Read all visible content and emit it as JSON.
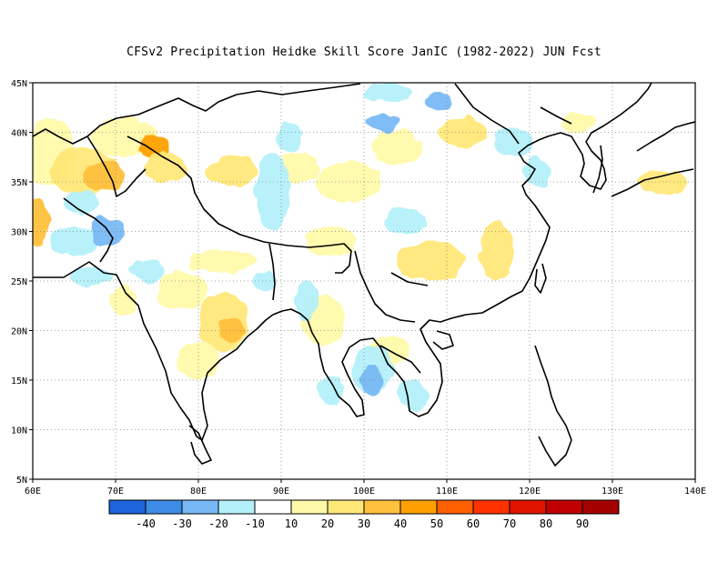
{
  "title": "CFSv2  Precipitation Heidke Skill Score JanIC (1982-2022) JUN Fcst",
  "map": {
    "lon_range": [
      60,
      140
    ],
    "lat_range": [
      5,
      45
    ],
    "lon_ticks": [
      "60E",
      "70E",
      "80E",
      "90E",
      "100E",
      "110E",
      "120E",
      "130E",
      "140E"
    ],
    "lat_ticks": [
      "5N",
      "10N",
      "15N",
      "20N",
      "25N",
      "30N",
      "35N",
      "40N",
      "45N"
    ],
    "grid": true
  },
  "colorbar": {
    "colors": [
      "#1e64dc",
      "#3c8ce6",
      "#78b9f5",
      "#b4f0fa",
      "#ffffff",
      "#fffaaa",
      "#ffe878",
      "#ffc03c",
      "#ffa000",
      "#ff6000",
      "#ff3200",
      "#e11400",
      "#c00000",
      "#a50000"
    ],
    "labels": [
      "-40",
      "-30",
      "-20",
      "-10",
      "10",
      "20",
      "30",
      "40",
      "50",
      "60",
      "70",
      "80",
      "90"
    ]
  },
  "skill_patches": [
    {
      "lon": 62,
      "lat": 38,
      "rx": 3,
      "ry": 3.5,
      "level": "20"
    },
    {
      "lon": 66,
      "lat": 36,
      "rx": 4,
      "ry": 2.5,
      "level": "30"
    },
    {
      "lon": 68.5,
      "lat": 35.5,
      "rx": 2.5,
      "ry": 1.5,
      "level": "40"
    },
    {
      "lon": 60.5,
      "lat": 31,
      "rx": 1.5,
      "ry": 2.5,
      "level": "40"
    },
    {
      "lon": 71,
      "lat": 39.5,
      "rx": 4,
      "ry": 2,
      "level": "20"
    },
    {
      "lon": 74.5,
      "lat": 38.5,
      "rx": 2,
      "ry": 1.2,
      "level": "50"
    },
    {
      "lon": 76,
      "lat": 36.5,
      "rx": 2.5,
      "ry": 1.5,
      "level": "30"
    },
    {
      "lon": 84,
      "lat": 36,
      "rx": 3,
      "ry": 1.5,
      "level": "30"
    },
    {
      "lon": 98,
      "lat": 35,
      "rx": 4,
      "ry": 2,
      "level": "20"
    },
    {
      "lon": 96,
      "lat": 29,
      "rx": 3,
      "ry": 1.5,
      "level": "20"
    },
    {
      "lon": 83,
      "lat": 27,
      "rx": 4,
      "ry": 1.2,
      "level": "20"
    },
    {
      "lon": 78,
      "lat": 24,
      "rx": 3,
      "ry": 2,
      "level": "20"
    },
    {
      "lon": 83,
      "lat": 21,
      "rx": 3,
      "ry": 3,
      "level": "30"
    },
    {
      "lon": 84,
      "lat": 20,
      "rx": 1.5,
      "ry": 1.2,
      "level": "40"
    },
    {
      "lon": 80,
      "lat": 17,
      "rx": 2.5,
      "ry": 2,
      "level": "20"
    },
    {
      "lon": 95,
      "lat": 21,
      "rx": 2.5,
      "ry": 2.5,
      "level": "20"
    },
    {
      "lon": 108,
      "lat": 27,
      "rx": 4,
      "ry": 2,
      "level": "30"
    },
    {
      "lon": 116,
      "lat": 28,
      "rx": 2,
      "ry": 3,
      "level": "30"
    },
    {
      "lon": 104,
      "lat": 38.5,
      "rx": 3,
      "ry": 1.8,
      "level": "20"
    },
    {
      "lon": 112,
      "lat": 40,
      "rx": 3,
      "ry": 1.5,
      "level": "30"
    },
    {
      "lon": 103,
      "lat": 18,
      "rx": 2.5,
      "ry": 1.5,
      "level": "20"
    },
    {
      "lon": 136,
      "lat": 35,
      "rx": 3,
      "ry": 1.2,
      "level": "30"
    },
    {
      "lon": 126,
      "lat": 41,
      "rx": 2,
      "ry": 1,
      "level": "20"
    },
    {
      "lon": 71,
      "lat": 23,
      "rx": 1.5,
      "ry": 1.5,
      "level": "20"
    },
    {
      "lon": 92,
      "lat": 36.5,
      "rx": 2.5,
      "ry": 1.5,
      "level": "20"
    },
    {
      "lon": 66,
      "lat": 33,
      "rx": 2,
      "ry": 1.2,
      "level": "-10"
    },
    {
      "lon": 65,
      "lat": 29,
      "rx": 3,
      "ry": 1.5,
      "level": "-10"
    },
    {
      "lon": 69,
      "lat": 30,
      "rx": 2,
      "ry": 1.5,
      "level": "-20"
    },
    {
      "lon": 74,
      "lat": 26,
      "rx": 2,
      "ry": 1.2,
      "level": "-10"
    },
    {
      "lon": 89,
      "lat": 34,
      "rx": 2,
      "ry": 4,
      "level": "-10"
    },
    {
      "lon": 91,
      "lat": 39.5,
      "rx": 1.5,
      "ry": 1.5,
      "level": "-10"
    },
    {
      "lon": 105,
      "lat": 31,
      "rx": 2.5,
      "ry": 1.5,
      "level": "-10"
    },
    {
      "lon": 102,
      "lat": 41,
      "rx": 2,
      "ry": 1,
      "level": "-20"
    },
    {
      "lon": 103,
      "lat": 44,
      "rx": 3,
      "ry": 1,
      "level": "-10"
    },
    {
      "lon": 109,
      "lat": 43,
      "rx": 1.5,
      "ry": 1,
      "level": "-20"
    },
    {
      "lon": 118,
      "lat": 39,
      "rx": 2.5,
      "ry": 1.5,
      "level": "-10"
    },
    {
      "lon": 121,
      "lat": 36,
      "rx": 1.5,
      "ry": 1.5,
      "level": "-10"
    },
    {
      "lon": 101,
      "lat": 16,
      "rx": 2.5,
      "ry": 2.5,
      "level": "-10"
    },
    {
      "lon": 101,
      "lat": 15,
      "rx": 1.5,
      "ry": 1.5,
      "level": "-20"
    },
    {
      "lon": 106,
      "lat": 13.5,
      "rx": 2,
      "ry": 1.5,
      "level": "-10"
    },
    {
      "lon": 93,
      "lat": 23,
      "rx": 1.5,
      "ry": 2,
      "level": "-10"
    },
    {
      "lon": 67,
      "lat": 25.5,
      "rx": 2.5,
      "ry": 1,
      "level": "-10"
    },
    {
      "lon": 96,
      "lat": 14,
      "rx": 1.5,
      "ry": 1.5,
      "level": "-10"
    },
    {
      "lon": 88,
      "lat": 25,
      "rx": 1.5,
      "ry": 1,
      "level": "-10"
    }
  ]
}
